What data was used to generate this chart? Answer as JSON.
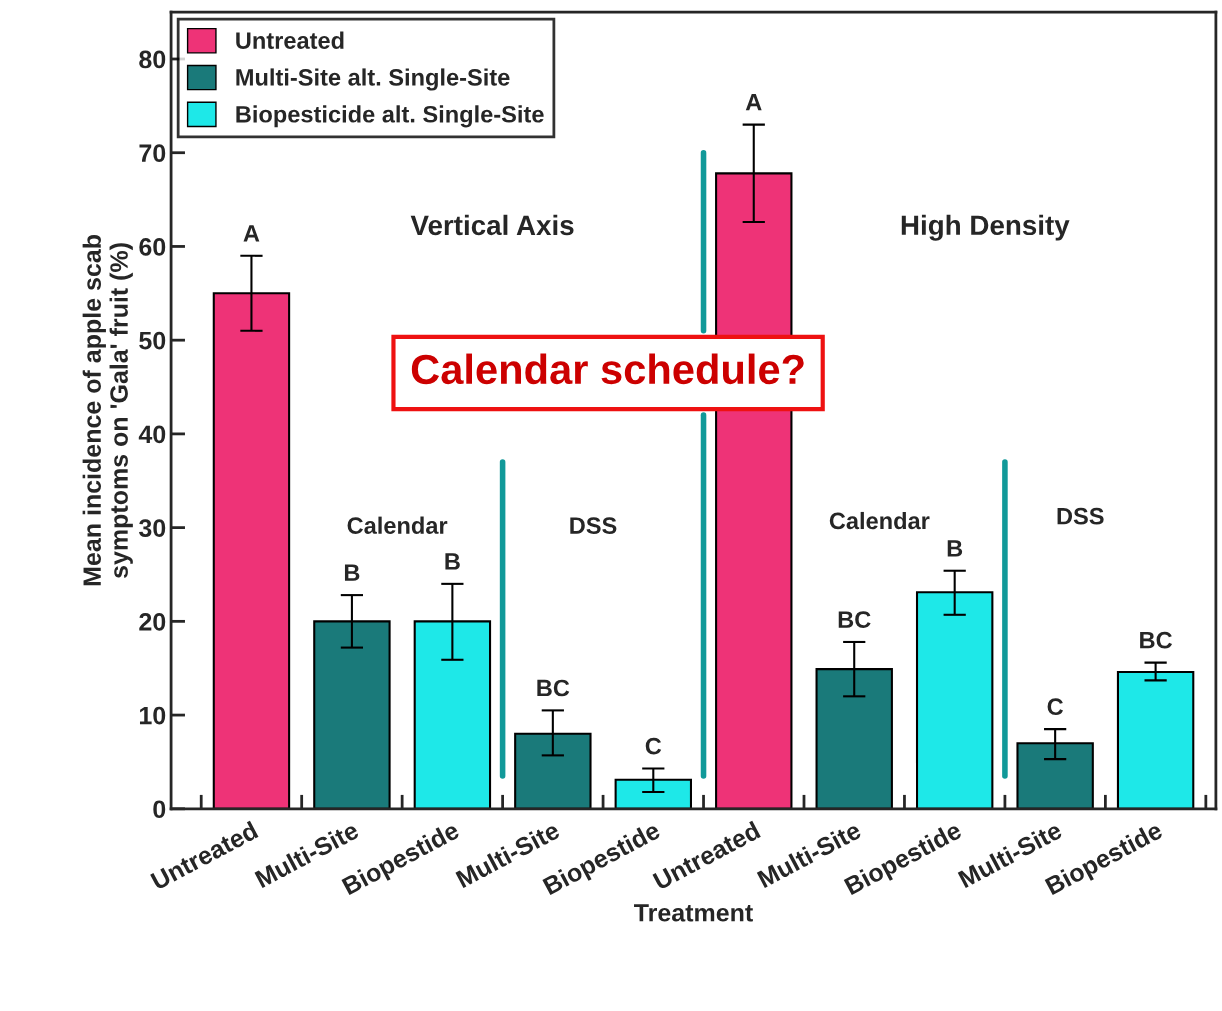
{
  "chart_data": {
    "type": "bar",
    "xlabel": "Treatment",
    "ylabel": "Mean incidence of apple scab\nsymptoms on 'Gala' fruit (%)",
    "categories": [
      "Untreated",
      "Multi-Site",
      "Biopestide",
      "Multi-Site",
      "Biopestide",
      "Untreated",
      "Multi-Site",
      "Biopestide",
      "Multi-Site",
      "Biopestide"
    ],
    "series": [
      {
        "name": "Untreated",
        "color": "#ee3377",
        "values": [
          55.0,
          null,
          null,
          null,
          null,
          67.8,
          null,
          null,
          null,
          null
        ],
        "errors": [
          [
            51.0,
            59.0
          ],
          null,
          null,
          null,
          null,
          [
            62.6,
            73.0
          ],
          null,
          null,
          null,
          null
        ],
        "value_labels": [
          "A",
          null,
          null,
          null,
          null,
          "A",
          null,
          null,
          null,
          null
        ]
      },
      {
        "name": "Multi-Site alt. Single-Site",
        "color": "#1a7a7a",
        "values": [
          null,
          20.0,
          null,
          8.0,
          null,
          null,
          14.9,
          null,
          7.0,
          null
        ],
        "errors": [
          null,
          [
            17.2,
            22.8
          ],
          null,
          [
            5.7,
            10.5
          ],
          null,
          null,
          [
            12.0,
            17.8
          ],
          null,
          [
            5.3,
            8.5
          ],
          null
        ],
        "value_labels": [
          null,
          "B",
          null,
          "BC",
          null,
          null,
          "BC",
          null,
          "C",
          null
        ]
      },
      {
        "name": "Biopesticide alt. Single-Site",
        "color": "#1ee8e8",
        "values": [
          null,
          null,
          20.0,
          null,
          3.1,
          null,
          null,
          23.1,
          null,
          14.6
        ],
        "errors": [
          null,
          null,
          [
            15.9,
            24.0
          ],
          null,
          [
            1.8,
            4.3
          ],
          null,
          null,
          [
            20.7,
            25.4
          ],
          null,
          [
            13.7,
            15.6
          ]
        ],
        "value_labels": [
          null,
          null,
          "B",
          null,
          "C",
          null,
          null,
          "B",
          null,
          "BC"
        ]
      }
    ],
    "annotations": [
      "Vertical Axis",
      "High Density",
      "Calendar",
      "DSS",
      "Calendar",
      "DSS",
      "Calendar schedule?"
    ],
    "ylim": [
      0,
      85
    ],
    "yticks": [
      0,
      10,
      20,
      30,
      40,
      50,
      60,
      70,
      80
    ],
    "grid": false,
    "legend": "top left"
  }
}
